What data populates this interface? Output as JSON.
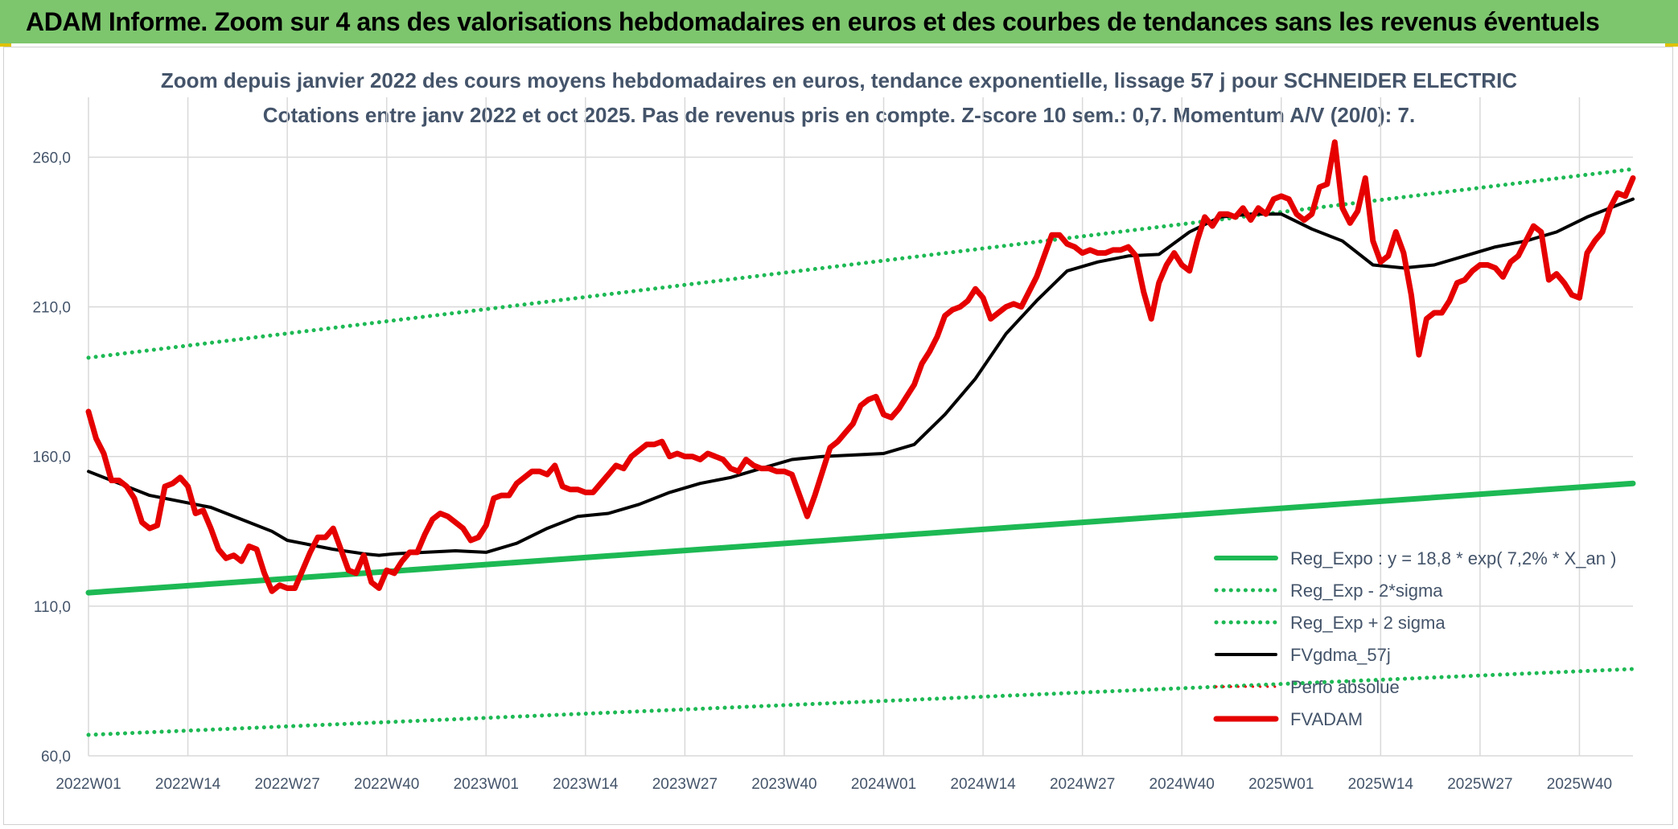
{
  "header": {
    "title": "ADAM Informe. Zoom sur 4 ans des valorisations hebdomadaires en euros et des courbes de tendances sans les revenus éventuels"
  },
  "colors": {
    "banner": "#7dc66e",
    "accent": "#e0c200",
    "trend": "#1db954",
    "mean": "#000000",
    "price": "#e60000",
    "grid": "#d9d9d9",
    "text": "#44546a"
  },
  "chart_data": {
    "type": "line",
    "title": "Zoom depuis janvier 2022 des cours moyens hebdomadaires en euros, tendance exponentielle, lissage 57 j pour SCHNEIDER ELECTRIC",
    "subtitle": "Cotations entre janv 2022 et oct 2025. Pas de revenus pris en compte. Z-score 10 sem.: 0,7. Momentum A/V (20/0): 7.",
    "ylim": [
      60,
      280
    ],
    "yticks": [
      "260,0",
      "210,0",
      "160,0",
      "110,0",
      "60,0"
    ],
    "ytick_values": [
      260,
      210,
      160,
      110,
      60
    ],
    "xticks": [
      "2022W01",
      "2022W14",
      "2022W27",
      "2022W40",
      "2023W01",
      "2023W14",
      "2023W27",
      "2023W40",
      "2024W01",
      "2024W14",
      "2024W27",
      "2024W40",
      "2025W01",
      "2025W14",
      "2025W27",
      "2025W40"
    ],
    "n_weeks": 202,
    "legend_position": "bottom-right",
    "series": [
      {
        "name": "Reg_Expo : y = 18,8 * exp( 7,2% *  X_an )",
        "style": "solid",
        "color": "#1db954",
        "width": 7,
        "x": [
          0,
          202
        ],
        "values": [
          114.5,
          151
        ]
      },
      {
        "name": "Reg_Exp - 2*sigma",
        "style": "dotted",
        "color": "#1db954",
        "width": 5,
        "x": [
          0,
          202
        ],
        "values": [
          67,
          89
        ]
      },
      {
        "name": "Reg_Exp + 2 sigma",
        "style": "dotted",
        "color": "#1db954",
        "width": 5,
        "x": [
          0,
          202
        ],
        "values": [
          193,
          256
        ]
      },
      {
        "name": "FVgdma_57j",
        "style": "solid",
        "color": "#000000",
        "width": 4,
        "x": [
          0,
          4,
          8,
          12,
          16,
          20,
          24,
          26,
          28,
          32,
          36,
          38,
          40,
          44,
          48,
          52,
          56,
          60,
          64,
          68,
          72,
          76,
          80,
          84,
          88,
          92,
          96,
          100,
          104,
          108,
          112,
          116,
          120,
          124,
          128,
          132,
          136,
          140,
          144,
          148,
          152,
          156,
          160,
          164,
          168,
          172,
          176,
          180,
          184,
          188,
          192,
          196,
          200,
          202
        ],
        "values": [
          155,
          151,
          147,
          145,
          143,
          139,
          135,
          132,
          131,
          129,
          127.5,
          127,
          127.5,
          128,
          128.5,
          128,
          131,
          136,
          140,
          141,
          144,
          148,
          151,
          153,
          156,
          159,
          160,
          160.5,
          161,
          164,
          174,
          186,
          201,
          212,
          222,
          225,
          227,
          227.5,
          235,
          240,
          241,
          241,
          236,
          232,
          224,
          223,
          224,
          227,
          230,
          232,
          235,
          240,
          244,
          246
        ]
      },
      {
        "name": "Perfo absolue",
        "style": "dotted",
        "color": "#e60000",
        "width": 3,
        "x": [],
        "values": []
      },
      {
        "name": "FVADAM",
        "style": "solid",
        "color": "#e60000",
        "width": 7,
        "x": [
          0,
          1,
          2,
          3,
          4,
          5,
          6,
          7,
          8,
          9,
          10,
          11,
          12,
          13,
          14,
          15,
          16,
          17,
          18,
          19,
          20,
          21,
          22,
          23,
          24,
          25,
          26,
          27,
          28,
          29,
          30,
          31,
          32,
          33,
          34,
          35,
          36,
          37,
          38,
          39,
          40,
          41,
          42,
          43,
          44,
          45,
          46,
          47,
          48,
          49,
          50,
          51,
          52,
          53,
          54,
          55,
          56,
          57,
          58,
          59,
          60,
          61,
          62,
          63,
          64,
          65,
          66,
          67,
          68,
          69,
          70,
          71,
          72,
          73,
          74,
          75,
          76,
          77,
          78,
          79,
          80,
          81,
          82,
          83,
          84,
          85,
          86,
          87,
          88,
          89,
          90,
          91,
          92,
          93,
          94,
          95,
          96,
          97,
          98,
          99,
          100,
          101,
          102,
          103,
          104,
          105,
          106,
          107,
          108,
          109,
          110,
          111,
          112,
          113,
          114,
          115,
          116,
          117,
          118,
          119,
          120,
          121,
          122,
          123,
          124,
          125,
          126,
          127,
          128,
          129,
          130,
          131,
          132,
          133,
          134,
          135,
          136,
          137,
          138,
          139,
          140,
          141,
          142,
          143,
          144,
          145,
          146,
          147,
          148,
          149,
          150,
          151,
          152,
          153,
          154,
          155,
          156,
          157,
          158,
          159,
          160,
          161,
          162,
          163,
          164,
          165,
          166,
          167,
          168,
          169,
          170,
          171,
          172,
          173,
          174,
          175,
          176,
          177,
          178,
          179,
          180,
          181,
          182,
          183,
          184,
          185,
          186,
          187,
          188,
          189,
          190,
          191,
          192,
          193,
          194,
          195,
          196,
          197,
          198,
          199,
          200,
          201,
          202
        ],
        "values": [
          175,
          166,
          161,
          152,
          152,
          150,
          146,
          138,
          136,
          137,
          150,
          151,
          153,
          150,
          141,
          142,
          136,
          129,
          126,
          127,
          125,
          130,
          129,
          121,
          115,
          117,
          116,
          116,
          122,
          128,
          133,
          133,
          136,
          129,
          122,
          121,
          127,
          118,
          116,
          122,
          121,
          125,
          128,
          128,
          134,
          139,
          141,
          140,
          138,
          136,
          132,
          133,
          137,
          146,
          147,
          147,
          151,
          153,
          155,
          155,
          154,
          157,
          150,
          149,
          149,
          148,
          148,
          151,
          154,
          157,
          156,
          160,
          162,
          164,
          164,
          165,
          160,
          161,
          160,
          160,
          159,
          161,
          160,
          159,
          156,
          155,
          159,
          157,
          156,
          156,
          155,
          155,
          154,
          147,
          140,
          147,
          155,
          163,
          165,
          168,
          171,
          177,
          179,
          180,
          174,
          173,
          176,
          180,
          184,
          191,
          195,
          200,
          207,
          209,
          210,
          212,
          216,
          213,
          206,
          208,
          210,
          211,
          210,
          215,
          220,
          227,
          234,
          234,
          231,
          230,
          228,
          229,
          228,
          228,
          229,
          229,
          230,
          227,
          215,
          206,
          218,
          224,
          228,
          224,
          222,
          232,
          240,
          237,
          241,
          241,
          240,
          243,
          239,
          243,
          241,
          246,
          247,
          246,
          241,
          239,
          241,
          250,
          251,
          265,
          243,
          238,
          242,
          253,
          232,
          225,
          227,
          235,
          228,
          214,
          194,
          206,
          208,
          208,
          212,
          218,
          219,
          222,
          224,
          224,
          223,
          220,
          225,
          227,
          232,
          237,
          235,
          219,
          221,
          218,
          214,
          213,
          228,
          232,
          235,
          243,
          248,
          247,
          253
        ]
      }
    ]
  }
}
